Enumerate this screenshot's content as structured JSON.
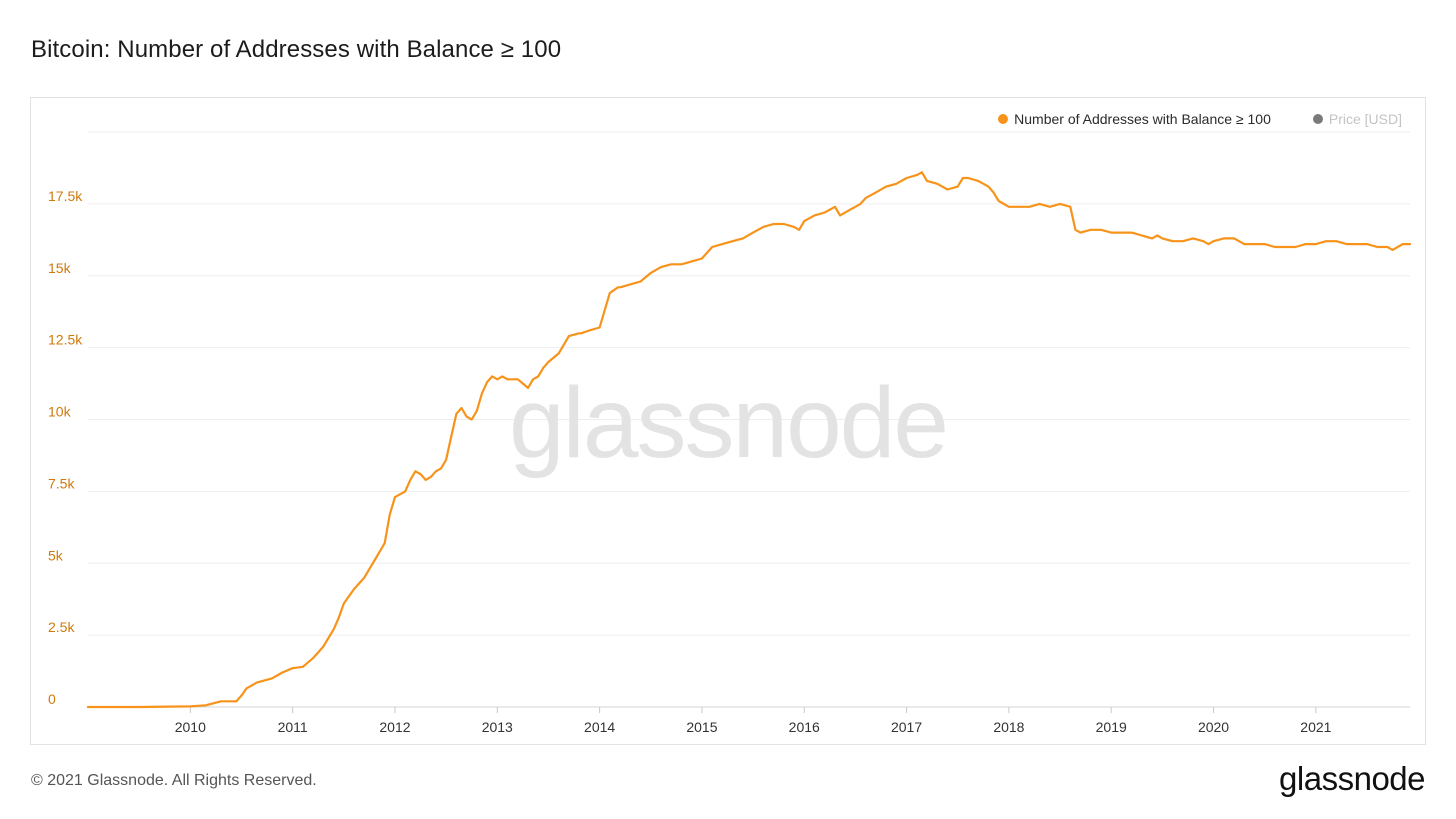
{
  "page": {
    "title": "Bitcoin: Number of Addresses with Balance ≥ 100",
    "copyright": "© 2021 Glassnode. All Rights Reserved.",
    "logo_text": "glassnode",
    "watermark": "glassnode"
  },
  "legend": {
    "items": [
      {
        "label": "Number of Addresses with Balance ≥ 100",
        "color": "#f7931a"
      },
      {
        "label": "Price [USD]",
        "color": "#7a7a7a"
      }
    ]
  },
  "chart_data": {
    "type": "line",
    "title": "Bitcoin: Number of Addresses with Balance ≥ 100",
    "xlabel": "",
    "ylabel": "",
    "xlim": [
      2009.0,
      2021.92
    ],
    "ylim": [
      0,
      20000
    ],
    "yticks": [
      0,
      2500,
      5000,
      7500,
      10000,
      12500,
      15000,
      17500
    ],
    "ytick_labels": [
      "0",
      "2.5k",
      "5k",
      "7.5k",
      "10k",
      "12.5k",
      "15k",
      "17.5k"
    ],
    "xticks": [
      2010,
      2011,
      2012,
      2013,
      2014,
      2015,
      2016,
      2017,
      2018,
      2019,
      2020,
      2021
    ],
    "xtick_labels": [
      "2010",
      "2011",
      "2012",
      "2013",
      "2014",
      "2015",
      "2016",
      "2017",
      "2018",
      "2019",
      "2020",
      "2021"
    ],
    "grid": true,
    "legend_position": "top-right",
    "series": [
      {
        "name": "Number of Addresses with Balance ≥ 100",
        "color": "#f7931a",
        "x": [
          2009.0,
          2009.5,
          2010.0,
          2010.15,
          2010.3,
          2010.45,
          2010.5,
          2010.55,
          2010.65,
          2010.8,
          2010.9,
          2011.0,
          2011.1,
          2011.2,
          2011.3,
          2011.4,
          2011.45,
          2011.5,
          2011.6,
          2011.7,
          2011.8,
          2011.9,
          2011.95,
          2012.0,
          2012.1,
          2012.15,
          2012.2,
          2012.25,
          2012.3,
          2012.35,
          2012.4,
          2012.45,
          2012.5,
          2012.55,
          2012.6,
          2012.65,
          2012.7,
          2012.75,
          2012.8,
          2012.85,
          2012.9,
          2012.95,
          2013.0,
          2013.05,
          2013.1,
          2013.2,
          2013.3,
          2013.35,
          2013.4,
          2013.45,
          2013.5,
          2013.6,
          2013.7,
          2013.8,
          2013.82,
          2013.9,
          2014.0,
          2014.1,
          2014.18,
          2014.2,
          2014.3,
          2014.4,
          2014.5,
          2014.6,
          2014.7,
          2014.8,
          2014.9,
          2015.0,
          2015.1,
          2015.2,
          2015.3,
          2015.4,
          2015.5,
          2015.6,
          2015.7,
          2015.8,
          2015.9,
          2015.95,
          2016.0,
          2016.1,
          2016.2,
          2016.3,
          2016.35,
          2016.45,
          2016.55,
          2016.6,
          2016.7,
          2016.8,
          2016.9,
          2017.0,
          2017.1,
          2017.15,
          2017.2,
          2017.3,
          2017.4,
          2017.5,
          2017.55,
          2017.6,
          2017.7,
          2017.8,
          2017.85,
          2017.9,
          2018.0,
          2018.1,
          2018.2,
          2018.3,
          2018.4,
          2018.5,
          2018.6,
          2018.65,
          2018.7,
          2018.8,
          2018.9,
          2019.0,
          2019.1,
          2019.2,
          2019.3,
          2019.4,
          2019.45,
          2019.5,
          2019.6,
          2019.7,
          2019.8,
          2019.9,
          2019.95,
          2020.0,
          2020.1,
          2020.2,
          2020.25,
          2020.3,
          2020.4,
          2020.5,
          2020.6,
          2020.7,
          2020.8,
          2020.9,
          2021.0,
          2021.1,
          2021.2,
          2021.3,
          2021.4,
          2021.5,
          2021.6,
          2021.7,
          2021.75,
          2021.8,
          2021.85,
          2021.92
        ],
        "y": [
          0,
          0,
          20,
          60,
          200,
          200,
          400,
          650,
          850,
          1000,
          1200,
          1350,
          1400,
          1700,
          2100,
          2700,
          3100,
          3600,
          4100,
          4500,
          5100,
          5700,
          6700,
          7300,
          7500,
          7900,
          8200,
          8100,
          7900,
          8000,
          8200,
          8300,
          8600,
          9400,
          10200,
          10400,
          10100,
          10000,
          10300,
          10900,
          11300,
          11500,
          11400,
          11500,
          11400,
          11400,
          11100,
          11400,
          11500,
          11800,
          12000,
          12300,
          12900,
          13000,
          13000,
          13100,
          13200,
          14400,
          14600,
          14600,
          14700,
          14800,
          15100,
          15300,
          15400,
          15400,
          15500,
          15600,
          16000,
          16100,
          16200,
          16300,
          16500,
          16700,
          16800,
          16800,
          16700,
          16600,
          16900,
          17100,
          17200,
          17400,
          17100,
          17300,
          17500,
          17700,
          17900,
          18100,
          18200,
          18400,
          18500,
          18600,
          18300,
          18200,
          18000,
          18100,
          18400,
          18400,
          18300,
          18100,
          17900,
          17600,
          17400,
          17400,
          17400,
          17500,
          17400,
          17500,
          17400,
          16600,
          16500,
          16600,
          16600,
          16500,
          16500,
          16500,
          16400,
          16300,
          16400,
          16300,
          16200,
          16200,
          16300,
          16200,
          16100,
          16200,
          16300,
          16300,
          16200,
          16100,
          16100,
          16100,
          16000,
          16000,
          16000,
          16100,
          16100,
          16200,
          16200,
          16100,
          16100,
          16100,
          16000,
          16000,
          15900,
          16000,
          16100,
          16100
        ]
      }
    ]
  }
}
